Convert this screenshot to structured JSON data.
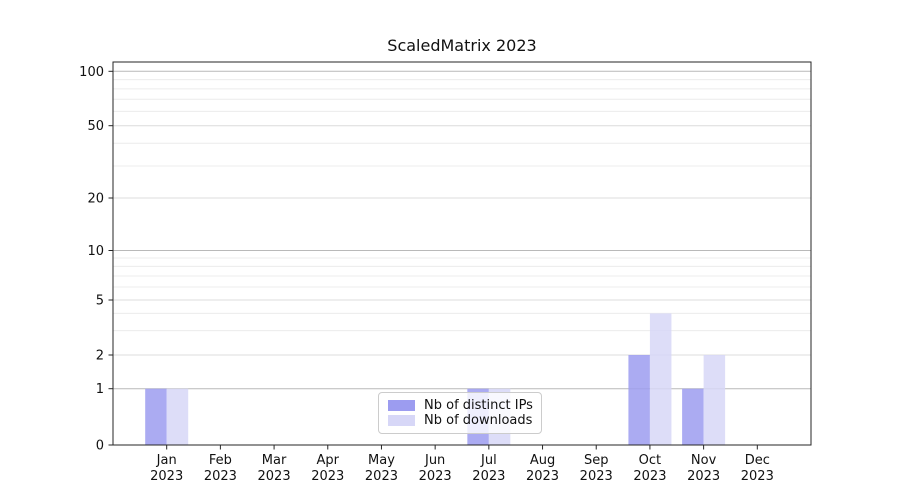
{
  "chart_data": {
    "type": "bar",
    "title": "ScaledMatrix 2023",
    "categories": [
      "Jan",
      "Feb",
      "Mar",
      "Apr",
      "May",
      "Jun",
      "Jul",
      "Aug",
      "Sep",
      "Oct",
      "Nov",
      "Dec"
    ],
    "year_label": "2023",
    "series": [
      {
        "name": "Nb of distinct IPs",
        "color": "#9c9cf0",
        "values": [
          1,
          0,
          0,
          0,
          0,
          0,
          1,
          0,
          0,
          2,
          1,
          0
        ]
      },
      {
        "name": "Nb of downloads",
        "color": "#d7d7f7",
        "values": [
          1,
          0,
          0,
          0,
          0,
          0,
          1,
          0,
          0,
          4,
          2,
          0
        ]
      }
    ],
    "yaxis": {
      "scale": "asinh",
      "ticks": [
        0,
        1,
        2,
        5,
        10,
        20,
        50,
        100
      ],
      "emphasized_gridlines": [
        1,
        10,
        100
      ],
      "mid_gridlines": [
        2,
        5,
        20,
        50
      ],
      "minor_gridlines": [
        3,
        4,
        6,
        7,
        8,
        9,
        30,
        40,
        60,
        70,
        80,
        90
      ],
      "ylim": [
        0,
        113
      ]
    },
    "legend": {
      "position": "lower-center-inside"
    },
    "grid": true,
    "style": {
      "axis_color": "#262626",
      "text_color": "#111111",
      "grid_major_color": "#b9b9b9",
      "grid_mid_color": "#dcdcdc",
      "grid_minor_color": "#ececec"
    }
  }
}
